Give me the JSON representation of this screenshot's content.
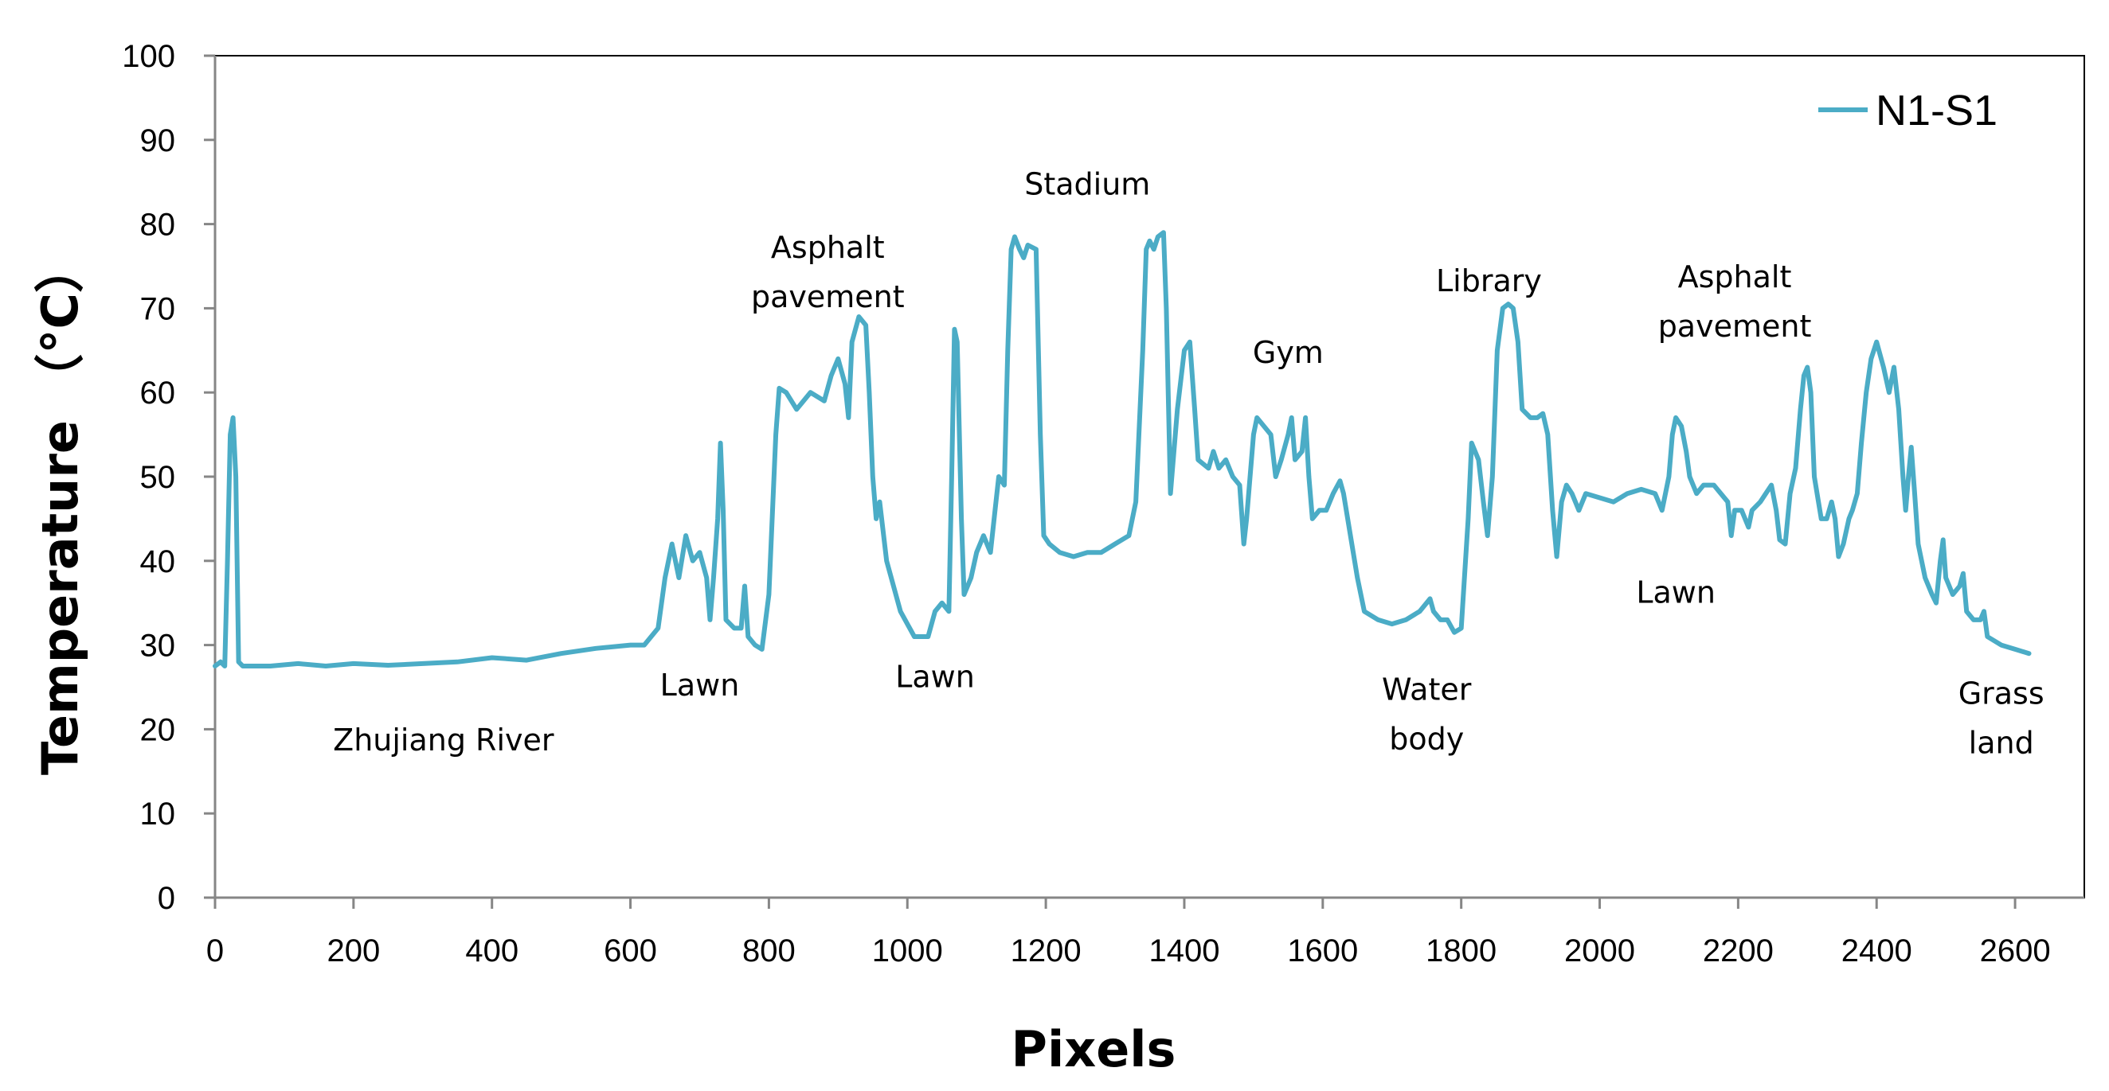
{
  "chart_data": {
    "type": "line",
    "title": "",
    "xlabel": "Pixels",
    "ylabel": "Temperature （°C）",
    "xlim": [
      0,
      2700
    ],
    "ylim": [
      0,
      100
    ],
    "x_ticks": [
      0,
      200,
      400,
      600,
      800,
      1000,
      1200,
      1400,
      1600,
      1800,
      2000,
      2200,
      2400,
      2600
    ],
    "y_ticks": [
      0,
      10,
      20,
      30,
      40,
      50,
      60,
      70,
      80,
      90,
      100
    ],
    "grid": false,
    "legend_position": "top-right",
    "color": "#4bacc6",
    "series": [
      {
        "name": "N1-S1",
        "points": [
          [
            0,
            27.5
          ],
          [
            8,
            28
          ],
          [
            14,
            27.5
          ],
          [
            18,
            40
          ],
          [
            22,
            55
          ],
          [
            26,
            57
          ],
          [
            30,
            50
          ],
          [
            34,
            28
          ],
          [
            40,
            27.5
          ],
          [
            80,
            27.5
          ],
          [
            120,
            27.8
          ],
          [
            160,
            27.5
          ],
          [
            200,
            27.8
          ],
          [
            250,
            27.6
          ],
          [
            300,
            27.8
          ],
          [
            350,
            28
          ],
          [
            400,
            28.5
          ],
          [
            450,
            28.2
          ],
          [
            500,
            29
          ],
          [
            550,
            29.6
          ],
          [
            600,
            30
          ],
          [
            620,
            30
          ],
          [
            640,
            32
          ],
          [
            650,
            38
          ],
          [
            660,
            42
          ],
          [
            670,
            38
          ],
          [
            680,
            43
          ],
          [
            690,
            40
          ],
          [
            700,
            41
          ],
          [
            710,
            38
          ],
          [
            715,
            33
          ],
          [
            720,
            38
          ],
          [
            726,
            45
          ],
          [
            730,
            54
          ],
          [
            734,
            46
          ],
          [
            738,
            33
          ],
          [
            750,
            32
          ],
          [
            760,
            32
          ],
          [
            765,
            37
          ],
          [
            770,
            31
          ],
          [
            780,
            30
          ],
          [
            790,
            29.5
          ],
          [
            800,
            36
          ],
          [
            810,
            55
          ],
          [
            815,
            60.5
          ],
          [
            825,
            60
          ],
          [
            840,
            58
          ],
          [
            860,
            60
          ],
          [
            880,
            59
          ],
          [
            890,
            62
          ],
          [
            900,
            64
          ],
          [
            910,
            61
          ],
          [
            915,
            57
          ],
          [
            920,
            66
          ],
          [
            930,
            69
          ],
          [
            940,
            68
          ],
          [
            945,
            60
          ],
          [
            950,
            50
          ],
          [
            955,
            45
          ],
          [
            960,
            47
          ],
          [
            970,
            40
          ],
          [
            990,
            34
          ],
          [
            1010,
            31
          ],
          [
            1030,
            31
          ],
          [
            1040,
            34
          ],
          [
            1050,
            35
          ],
          [
            1060,
            34
          ],
          [
            1064,
            50
          ],
          [
            1068,
            67.5
          ],
          [
            1072,
            66
          ],
          [
            1078,
            45
          ],
          [
            1082,
            36
          ],
          [
            1092,
            38
          ],
          [
            1100,
            41
          ],
          [
            1110,
            43
          ],
          [
            1120,
            41
          ],
          [
            1128,
            47
          ],
          [
            1132,
            50
          ],
          [
            1140,
            49
          ],
          [
            1145,
            65
          ],
          [
            1150,
            77
          ],
          [
            1155,
            78.5
          ],
          [
            1162,
            77
          ],
          [
            1168,
            76
          ],
          [
            1174,
            77.5
          ],
          [
            1186,
            77
          ],
          [
            1192,
            55
          ],
          [
            1197,
            43
          ],
          [
            1205,
            42
          ],
          [
            1220,
            41
          ],
          [
            1240,
            40.5
          ],
          [
            1260,
            41
          ],
          [
            1280,
            41
          ],
          [
            1300,
            42
          ],
          [
            1320,
            43
          ],
          [
            1330,
            47
          ],
          [
            1340,
            65
          ],
          [
            1345,
            77
          ],
          [
            1350,
            78
          ],
          [
            1356,
            77
          ],
          [
            1362,
            78.5
          ],
          [
            1370,
            79
          ],
          [
            1374,
            70
          ],
          [
            1380,
            48
          ],
          [
            1390,
            58
          ],
          [
            1400,
            65
          ],
          [
            1408,
            66
          ],
          [
            1415,
            58
          ],
          [
            1420,
            52
          ],
          [
            1435,
            51
          ],
          [
            1442,
            53
          ],
          [
            1450,
            51
          ],
          [
            1460,
            52
          ],
          [
            1470,
            50
          ],
          [
            1480,
            49
          ],
          [
            1486,
            42
          ],
          [
            1490,
            45
          ],
          [
            1500,
            55
          ],
          [
            1505,
            57
          ],
          [
            1515,
            56
          ],
          [
            1525,
            55
          ],
          [
            1532,
            50
          ],
          [
            1540,
            52
          ],
          [
            1550,
            55
          ],
          [
            1555,
            57
          ],
          [
            1560,
            52
          ],
          [
            1570,
            53
          ],
          [
            1575,
            57
          ],
          [
            1580,
            50
          ],
          [
            1585,
            45
          ],
          [
            1595,
            46
          ],
          [
            1605,
            46
          ],
          [
            1615,
            48
          ],
          [
            1625,
            49.5
          ],
          [
            1630,
            48
          ],
          [
            1640,
            43
          ],
          [
            1650,
            38
          ],
          [
            1660,
            34
          ],
          [
            1680,
            33
          ],
          [
            1700,
            32.5
          ],
          [
            1720,
            33
          ],
          [
            1740,
            34
          ],
          [
            1750,
            35
          ],
          [
            1755,
            35.5
          ],
          [
            1760,
            34
          ],
          [
            1770,
            33
          ],
          [
            1780,
            33
          ],
          [
            1790,
            31.5
          ],
          [
            1800,
            32
          ],
          [
            1810,
            45
          ],
          [
            1815,
            54
          ],
          [
            1825,
            52
          ],
          [
            1832,
            47
          ],
          [
            1838,
            43
          ],
          [
            1845,
            50
          ],
          [
            1852,
            65
          ],
          [
            1860,
            70
          ],
          [
            1868,
            70.5
          ],
          [
            1875,
            70
          ],
          [
            1882,
            66
          ],
          [
            1888,
            58
          ],
          [
            1900,
            57
          ],
          [
            1910,
            57
          ],
          [
            1918,
            57.5
          ],
          [
            1925,
            55
          ],
          [
            1932,
            46
          ],
          [
            1938,
            40.5
          ],
          [
            1945,
            47
          ],
          [
            1952,
            49
          ],
          [
            1960,
            48
          ],
          [
            1970,
            46
          ],
          [
            1980,
            48
          ],
          [
            2000,
            47.5
          ],
          [
            2020,
            47
          ],
          [
            2040,
            48
          ],
          [
            2060,
            48.5
          ],
          [
            2080,
            48
          ],
          [
            2090,
            46
          ],
          [
            2100,
            50
          ],
          [
            2105,
            55
          ],
          [
            2110,
            57
          ],
          [
            2118,
            56
          ],
          [
            2125,
            53
          ],
          [
            2130,
            50
          ],
          [
            2140,
            48
          ],
          [
            2150,
            49
          ],
          [
            2165,
            49
          ],
          [
            2175,
            48
          ],
          [
            2185,
            47
          ],
          [
            2190,
            43
          ],
          [
            2195,
            46
          ],
          [
            2205,
            46
          ],
          [
            2215,
            44
          ],
          [
            2220,
            46
          ],
          [
            2232,
            47
          ],
          [
            2240,
            48
          ],
          [
            2248,
            49
          ],
          [
            2255,
            46
          ],
          [
            2260,
            42.5
          ],
          [
            2268,
            42
          ],
          [
            2275,
            48
          ],
          [
            2283,
            51
          ],
          [
            2290,
            58
          ],
          [
            2295,
            62
          ],
          [
            2300,
            63
          ],
          [
            2305,
            60
          ],
          [
            2310,
            50
          ],
          [
            2320,
            45
          ],
          [
            2328,
            45
          ],
          [
            2335,
            47
          ],
          [
            2340,
            45
          ],
          [
            2345,
            40.5
          ],
          [
            2352,
            42
          ],
          [
            2360,
            45
          ],
          [
            2365,
            46
          ],
          [
            2372,
            48
          ],
          [
            2378,
            54
          ],
          [
            2385,
            60
          ],
          [
            2392,
            64
          ],
          [
            2400,
            66
          ],
          [
            2410,
            63
          ],
          [
            2418,
            60
          ],
          [
            2425,
            63
          ],
          [
            2432,
            58
          ],
          [
            2438,
            50
          ],
          [
            2442,
            46
          ],
          [
            2446,
            50
          ],
          [
            2450,
            53.5
          ],
          [
            2455,
            48
          ],
          [
            2460,
            42
          ],
          [
            2470,
            38
          ],
          [
            2480,
            36
          ],
          [
            2486,
            35
          ],
          [
            2492,
            40
          ],
          [
            2496,
            42.5
          ],
          [
            2500,
            38
          ],
          [
            2510,
            36
          ],
          [
            2520,
            37
          ],
          [
            2525,
            38.5
          ],
          [
            2530,
            34
          ],
          [
            2540,
            33
          ],
          [
            2550,
            33
          ],
          [
            2555,
            34
          ],
          [
            2560,
            31
          ],
          [
            2580,
            30
          ],
          [
            2600,
            29.5
          ],
          [
            2620,
            29
          ]
        ]
      }
    ],
    "annotations": [
      {
        "lines": [
          "Zhujiang  River"
        ],
        "x": 330,
        "y": 17.5
      },
      {
        "lines": [
          "Lawn"
        ],
        "x": 700,
        "y": 24
      },
      {
        "lines": [
          "Asphalt",
          "pavement"
        ],
        "x": 885,
        "y": 76
      },
      {
        "lines": [
          "Lawn"
        ],
        "x": 1040,
        "y": 25
      },
      {
        "lines": [
          "Stadium"
        ],
        "x": 1260,
        "y": 83.5
      },
      {
        "lines": [
          "Gym"
        ],
        "x": 1550,
        "y": 63.5
      },
      {
        "lines": [
          "Water",
          "body"
        ],
        "x": 1750,
        "y": 23.5
      },
      {
        "lines": [
          "Library"
        ],
        "x": 1840,
        "y": 72
      },
      {
        "lines": [
          "Lawn"
        ],
        "x": 2110,
        "y": 35
      },
      {
        "lines": [
          "Asphalt",
          "pavement"
        ],
        "x": 2195,
        "y": 72.5
      },
      {
        "lines": [
          "Grass",
          "land"
        ],
        "x": 2580,
        "y": 23
      }
    ]
  }
}
